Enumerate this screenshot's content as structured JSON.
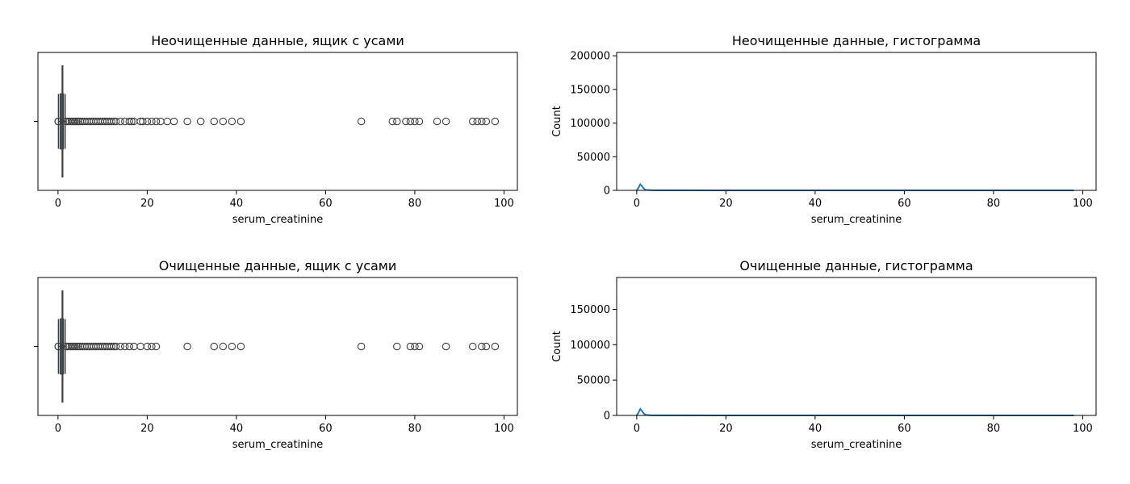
{
  "chart_data": [
    {
      "type": "box",
      "title": "Неочищенные данные, ящик с усами",
      "xlabel": "serum_creatinine",
      "ylabel": "",
      "xlim": [
        -4.5,
        103
      ],
      "xticks": [
        0,
        20,
        40,
        60,
        80,
        100
      ],
      "box": {
        "q1": 0.5,
        "median": 1.0,
        "q3": 1.2,
        "whisker_low": 0.1,
        "whisker_high": 1.6
      },
      "outliers": [
        0.05,
        0.08,
        1.8,
        2.2,
        2.6,
        3.0,
        3.4,
        3.8,
        4.2,
        4.6,
        5.0,
        5.5,
        6.0,
        6.5,
        7.0,
        7.5,
        8.0,
        8.5,
        9.0,
        9.5,
        10.0,
        10.5,
        11.0,
        11.5,
        12.0,
        12.5,
        13.0,
        14.0,
        15.0,
        16.0,
        16.5,
        17.0,
        18.5,
        19.0,
        20.0,
        21.0,
        22.0,
        23.0,
        24.5,
        26.0,
        29.0,
        32.0,
        35.0,
        37.0,
        39.0,
        41.0,
        68.0,
        75.0,
        76.0,
        78.0,
        79.0,
        80.0,
        81.0,
        85.0,
        87.0,
        93.0,
        94.0,
        95.0,
        96.0,
        98.0
      ]
    },
    {
      "type": "line",
      "title": "Неочищенные данные, гистограмма",
      "xlabel": "serum_creatinine",
      "ylabel": "Count",
      "xlim": [
        -4.5,
        103
      ],
      "ylim": [
        0,
        205000
      ],
      "xticks": [
        0,
        20,
        40,
        60,
        80,
        100
      ],
      "yticks": [
        0,
        50000,
        100000,
        150000,
        200000
      ],
      "series": [
        {
          "x": [
            0,
            0.4,
            0.8,
            1.2,
            1.6,
            2.0,
            3.0,
            5,
            10,
            20,
            40,
            60,
            80,
            98
          ],
          "y": [
            0,
            4000,
            9000,
            6000,
            2500,
            800,
            300,
            150,
            100,
            60,
            40,
            30,
            20,
            0
          ]
        }
      ]
    },
    {
      "type": "box",
      "title": "Очищенные данные, ящик с усами",
      "xlabel": "serum_creatinine",
      "ylabel": "",
      "xlim": [
        -4.5,
        103
      ],
      "xticks": [
        0,
        20,
        40,
        60,
        80,
        100
      ],
      "box": {
        "q1": 0.5,
        "median": 1.0,
        "q3": 1.2,
        "whisker_low": 0.1,
        "whisker_high": 1.6
      },
      "outliers": [
        0.05,
        0.08,
        1.8,
        2.2,
        2.6,
        3.0,
        3.4,
        3.8,
        4.2,
        4.6,
        5.0,
        5.5,
        6.0,
        6.5,
        7.0,
        7.5,
        8.0,
        8.5,
        9.0,
        9.5,
        10.0,
        10.5,
        11.0,
        11.5,
        12.0,
        12.5,
        13.0,
        14.0,
        15.0,
        16.0,
        17.0,
        18.5,
        20.0,
        21.0,
        22.0,
        29.0,
        35.0,
        37.0,
        39.0,
        41.0,
        68.0,
        76.0,
        79.0,
        80.0,
        81.0,
        87.0,
        93.0,
        95.0,
        96.0,
        98.0
      ]
    },
    {
      "type": "line",
      "title": "Очищенные данные, гистограмма",
      "xlabel": "serum_creatinine",
      "ylabel": "Count",
      "xlim": [
        -4.5,
        103
      ],
      "ylim": [
        0,
        195000
      ],
      "xticks": [
        0,
        20,
        40,
        60,
        80,
        100
      ],
      "yticks": [
        0,
        50000,
        100000,
        150000
      ],
      "series": [
        {
          "x": [
            0,
            0.4,
            0.8,
            1.2,
            1.6,
            2.0,
            3.0,
            5,
            10,
            20,
            40,
            60,
            80,
            98
          ],
          "y": [
            0,
            4000,
            9000,
            6000,
            2500,
            800,
            300,
            150,
            100,
            60,
            40,
            30,
            20,
            0
          ]
        }
      ]
    }
  ]
}
